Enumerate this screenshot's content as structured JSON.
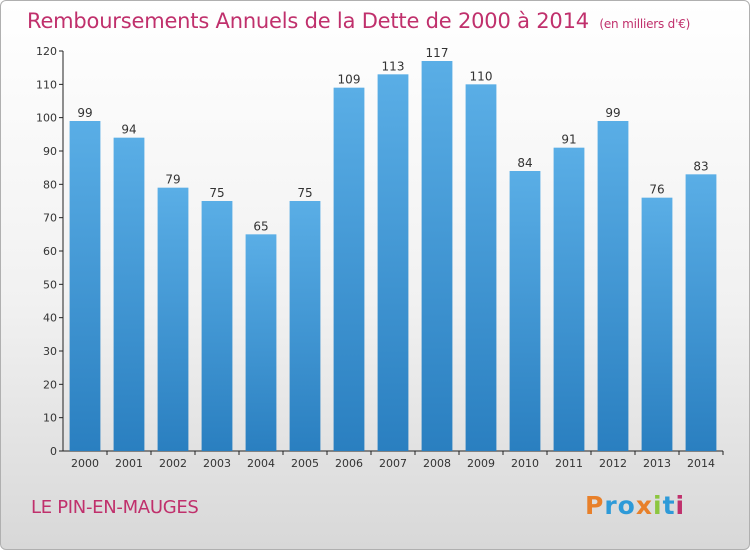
{
  "header": {
    "title": "Remboursements Annuels de la Dette de 2000 à 2014",
    "subtitle": "(en milliers d'€)"
  },
  "footer": {
    "place": "LE PIN-EN-MAUGES",
    "logo": "Proxiti"
  },
  "colors": {
    "title": "#c0306c",
    "bar_top": "#5aaee6",
    "bar_bottom": "#2a7fc0",
    "logo": [
      "#e8802a",
      "#2e9ad8",
      "#2e9ad8",
      "#e8802a",
      "#8cc63f",
      "#2e9ad8",
      "#c0306c"
    ]
  },
  "chart_data": {
    "type": "bar",
    "title": "Remboursements Annuels de la Dette de 2000 à 2014",
    "xlabel": "",
    "ylabel": "",
    "categories": [
      "2000",
      "2001",
      "2002",
      "2003",
      "2004",
      "2005",
      "2006",
      "2007",
      "2008",
      "2009",
      "2010",
      "2011",
      "2012",
      "2013",
      "2014"
    ],
    "values": [
      99,
      94,
      79,
      75,
      65,
      75,
      109,
      113,
      117,
      110,
      84,
      91,
      99,
      76,
      83
    ],
    "ylim": [
      0,
      120
    ],
    "yticks": [
      0,
      10,
      20,
      30,
      40,
      50,
      60,
      70,
      80,
      90,
      100,
      110,
      120
    ],
    "grid": false,
    "data_labels": true
  }
}
